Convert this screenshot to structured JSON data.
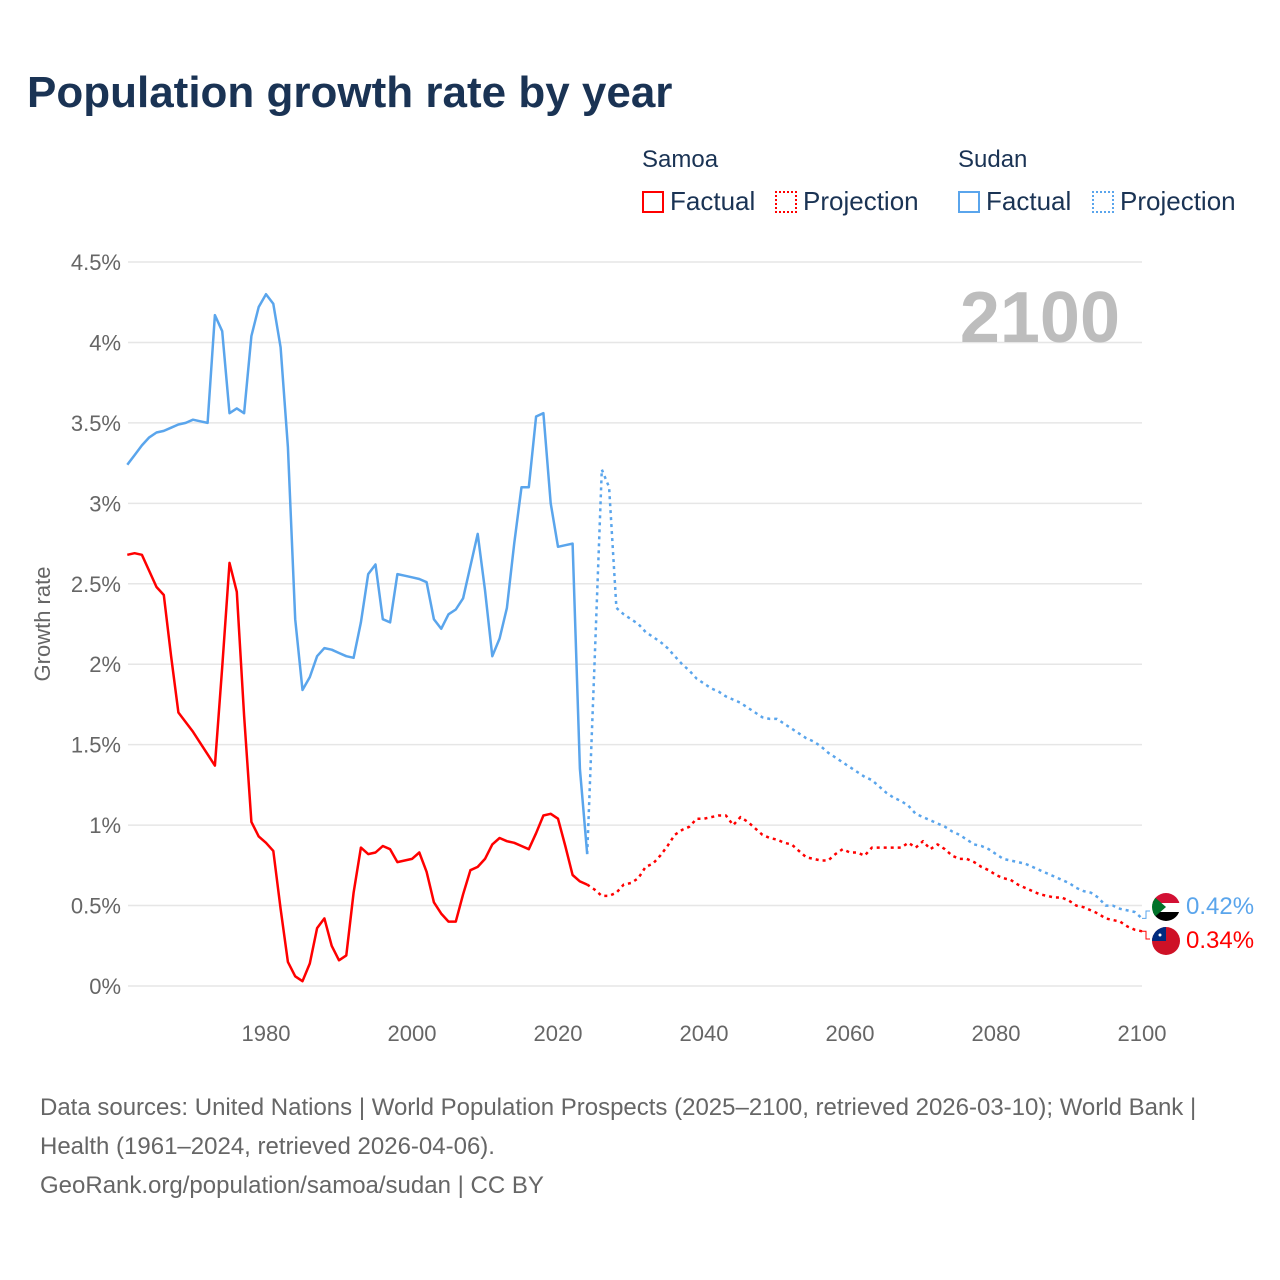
{
  "title": "Population growth rate by year",
  "legend": {
    "groups": [
      {
        "name": "Samoa",
        "factual": "Factual",
        "projection": "Projection",
        "color": "#ff0000"
      },
      {
        "name": "Sudan",
        "factual": "Factual",
        "projection": "Projection",
        "color": "#5aa5ec"
      }
    ]
  },
  "year_label": "2100",
  "footer": {
    "sources": "Data sources: United Nations | World Population Prospects (2025–2100, retrieved 2026-03-10); World Bank | Health (1961–2024, retrieved 2026-04-06).",
    "link": "GeoRank.org/population/samoa/sudan | CC BY"
  },
  "chart_data": {
    "type": "line",
    "title": "Population growth rate by year",
    "xlabel": "",
    "ylabel": "Growth rate",
    "xlim": [
      1961,
      2100
    ],
    "ylim": [
      0,
      4.5
    ],
    "xticks": [
      1980,
      2000,
      2020,
      2040,
      2060,
      2080,
      2100
    ],
    "yticks": [
      {
        "v": 0,
        "label": "0%"
      },
      {
        "v": 0.5,
        "label": "0.5%"
      },
      {
        "v": 1,
        "label": "1%"
      },
      {
        "v": 1.5,
        "label": "1.5%"
      },
      {
        "v": 2,
        "label": "2%"
      },
      {
        "v": 2.5,
        "label": "2.5%"
      },
      {
        "v": 3,
        "label": "3%"
      },
      {
        "v": 3.5,
        "label": "3.5%"
      },
      {
        "v": 4,
        "label": "4%"
      },
      {
        "v": 4.5,
        "label": "4.5%"
      }
    ],
    "series": [
      {
        "name": "Sudan Factual",
        "color": "#5aa5ec",
        "dashed": false,
        "start": 1961,
        "values": [
          3.24,
          3.3,
          3.36,
          3.41,
          3.44,
          3.45,
          3.47,
          3.49,
          3.5,
          3.52,
          3.51,
          3.5,
          4.17,
          4.07,
          3.56,
          3.59,
          3.56,
          4.04,
          4.22,
          4.3,
          4.24,
          3.97,
          3.35,
          2.28,
          1.84,
          1.92,
          2.05,
          2.1,
          2.09,
          2.07,
          2.05,
          2.04,
          2.26,
          2.56,
          2.62,
          2.28,
          2.26,
          2.56,
          2.55,
          2.54,
          2.53,
          2.51,
          2.28,
          2.22,
          2.31,
          2.34,
          2.41,
          2.61,
          2.81,
          2.46,
          2.05,
          2.16,
          2.35,
          2.75,
          3.1,
          3.1,
          3.54,
          3.56,
          3.0,
          2.73,
          2.74,
          2.75,
          1.35,
          0.82
        ]
      },
      {
        "name": "Sudan Projection",
        "color": "#5aa5ec",
        "dashed": true,
        "start": 2024,
        "values": [
          0.82,
          2.0,
          3.21,
          3.1,
          2.35,
          2.31,
          2.28,
          2.25,
          2.2,
          2.17,
          2.14,
          2.1,
          2.05,
          2.0,
          1.96,
          1.91,
          1.88,
          1.85,
          1.83,
          1.8,
          1.78,
          1.76,
          1.73,
          1.7,
          1.67,
          1.66,
          1.66,
          1.63,
          1.6,
          1.57,
          1.54,
          1.52,
          1.49,
          1.45,
          1.42,
          1.39,
          1.36,
          1.33,
          1.3,
          1.28,
          1.24,
          1.2,
          1.17,
          1.15,
          1.12,
          1.07,
          1.05,
          1.03,
          1.01,
          0.99,
          0.96,
          0.94,
          0.91,
          0.88,
          0.87,
          0.85,
          0.82,
          0.79,
          0.78,
          0.77,
          0.76,
          0.74,
          0.72,
          0.7,
          0.68,
          0.66,
          0.64,
          0.61,
          0.59,
          0.58,
          0.55,
          0.5,
          0.5,
          0.48,
          0.47,
          0.46,
          0.42
        ]
      },
      {
        "name": "Samoa Factual",
        "color": "#ff0000",
        "dashed": false,
        "start": 1961,
        "values": [
          2.68,
          2.69,
          2.68,
          2.58,
          2.48,
          2.43,
          2.05,
          1.7,
          1.64,
          1.58,
          1.51,
          1.44,
          1.37,
          1.98,
          2.63,
          2.45,
          1.68,
          1.02,
          0.93,
          0.89,
          0.84,
          0.48,
          0.15,
          0.06,
          0.03,
          0.14,
          0.36,
          0.42,
          0.25,
          0.16,
          0.19,
          0.58,
          0.86,
          0.82,
          0.83,
          0.87,
          0.85,
          0.77,
          0.78,
          0.79,
          0.83,
          0.71,
          0.52,
          0.45,
          0.4,
          0.4,
          0.57,
          0.72,
          0.74,
          0.79,
          0.88,
          0.92,
          0.9,
          0.89,
          0.87,
          0.85,
          0.95,
          1.06,
          1.07,
          1.04,
          0.87,
          0.69,
          0.65,
          0.63
        ]
      },
      {
        "name": "Samoa Projection",
        "color": "#ff0000",
        "dashed": true,
        "start": 2024,
        "values": [
          0.63,
          0.6,
          0.56,
          0.56,
          0.58,
          0.63,
          0.64,
          0.67,
          0.74,
          0.76,
          0.81,
          0.87,
          0.94,
          0.97,
          0.99,
          1.04,
          1.04,
          1.05,
          1.06,
          1.06,
          1.0,
          1.05,
          1.02,
          0.98,
          0.94,
          0.92,
          0.91,
          0.89,
          0.88,
          0.84,
          0.8,
          0.79,
          0.78,
          0.78,
          0.82,
          0.85,
          0.83,
          0.83,
          0.81,
          0.86,
          0.86,
          0.86,
          0.86,
          0.86,
          0.89,
          0.86,
          0.9,
          0.85,
          0.88,
          0.85,
          0.81,
          0.79,
          0.79,
          0.77,
          0.74,
          0.72,
          0.69,
          0.67,
          0.66,
          0.63,
          0.61,
          0.59,
          0.57,
          0.56,
          0.55,
          0.55,
          0.53,
          0.5,
          0.49,
          0.47,
          0.45,
          0.42,
          0.41,
          0.4,
          0.37,
          0.35,
          0.34
        ]
      }
    ],
    "end_labels": [
      {
        "country": "Sudan",
        "label": "0.42%",
        "color": "#5aa5ec"
      },
      {
        "country": "Samoa",
        "label": "0.34%",
        "color": "#ff0000"
      }
    ]
  }
}
